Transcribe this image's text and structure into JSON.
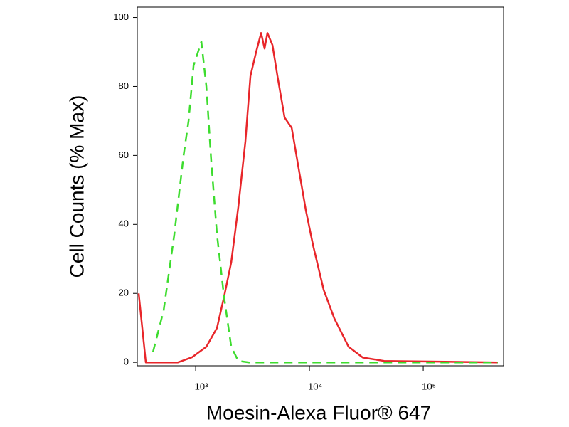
{
  "chart_data": {
    "type": "line",
    "x_label": "Moesin-Alexa Fluor® 647",
    "y_label": "Cell Counts (% Max)",
    "xscale": "log",
    "xlim": [
      307,
      508000
    ],
    "ylim": [
      -1,
      103
    ],
    "xticks": [
      {
        "value": 1000,
        "label": "10³"
      },
      {
        "value": 10000,
        "label": "10⁴"
      },
      {
        "value": 100000,
        "label": "10⁵"
      }
    ],
    "yticks": [
      0,
      20,
      40,
      60,
      80,
      100
    ],
    "series": [
      {
        "color": "#e8262a",
        "dash": false,
        "x": [
          316,
          365,
          698,
          931,
          1241,
          1540,
          1778,
          2054,
          2371,
          2738,
          3029,
          3398,
          3758,
          4036,
          4276,
          4732,
          5234,
          6043,
          6978,
          8058,
          9306,
          10750,
          13340,
          16550,
          22070,
          29430,
          45310,
          453000
        ],
        "values": [
          20,
          0,
          0,
          1.5,
          4.5,
          10,
          19,
          29,
          45,
          64,
          83,
          90,
          95.5,
          91,
          95.5,
          92,
          83,
          71,
          68,
          56,
          44,
          34,
          21,
          12.7,
          4.5,
          1.4,
          0.4,
          0
        ]
      },
      {
        "color": "#3ddc2e",
        "dash": true,
        "x": [
          422,
          523,
          649,
          783,
          866,
          958,
          1122,
          1241,
          1373,
          1540,
          1778,
          2054,
          2371,
          2944,
          453000
        ],
        "values": [
          3,
          15,
          37,
          60,
          70,
          86,
          93,
          80,
          58,
          37,
          19,
          4.5,
          0.4,
          0,
          0
        ]
      }
    ]
  }
}
